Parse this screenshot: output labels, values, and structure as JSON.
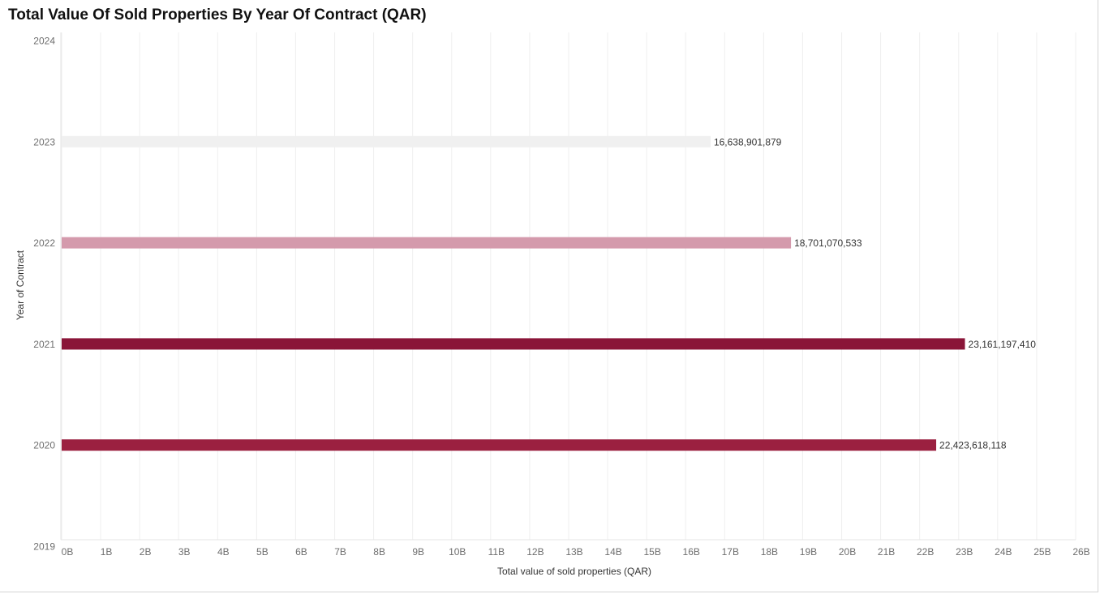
{
  "title": "Total Value Of Sold Properties By Year Of Contract (QAR)",
  "chart_data": {
    "type": "bar",
    "orientation": "horizontal",
    "title": "Total Value Of Sold Properties By Year Of Contract (QAR)",
    "xlabel": "Total value of sold properties (QAR)",
    "ylabel": "Year of Contract",
    "categories": [
      "2024",
      "2023",
      "2022",
      "2021",
      "2020",
      "2019"
    ],
    "values": [
      null,
      16638901879,
      18701070533,
      23161197410,
      22423618118,
      null
    ],
    "value_labels": [
      "",
      "16,638,901,879",
      "18,701,070,533",
      "23,161,197,410",
      "22,423,618,118",
      ""
    ],
    "bar_colors": [
      "",
      "#f0f0f0",
      "#d49aac",
      "#8a1538",
      "#9b2040"
    ],
    "xlim": [
      0,
      26000000000
    ],
    "x_ticks": [
      "0B",
      "1B",
      "2B",
      "3B",
      "4B",
      "5B",
      "6B",
      "7B",
      "8B",
      "9B",
      "10B",
      "11B",
      "12B",
      "13B",
      "14B",
      "15B",
      "16B",
      "17B",
      "18B",
      "19B",
      "20B",
      "21B",
      "22B",
      "23B",
      "24B",
      "25B",
      "26B"
    ],
    "grid": "vertical",
    "legend": "none"
  }
}
